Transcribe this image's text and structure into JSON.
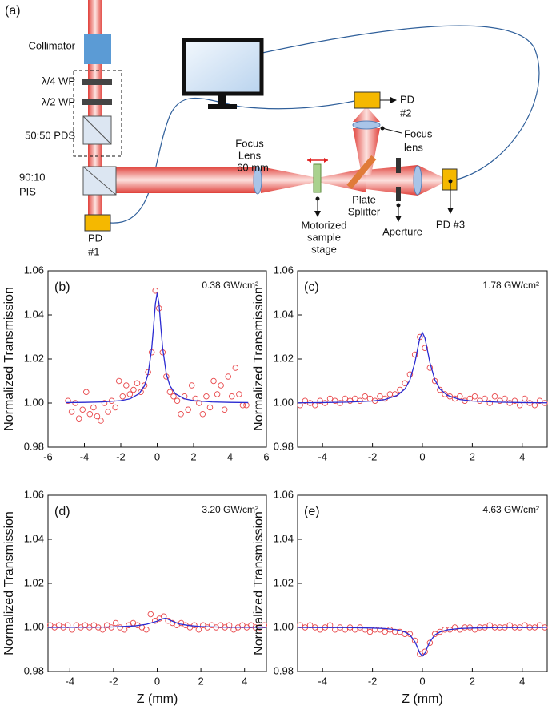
{
  "diagram": {
    "panel_label": "(a)",
    "collimator": "Collimator",
    "quarter_wp": "λ/4 WP",
    "half_wp": "λ/2 WP",
    "pds": "50:50 PDS",
    "pis": [
      "90:10",
      "PIS"
    ],
    "pd1": [
      "PD",
      "#1"
    ],
    "focus_lens": [
      "Focus",
      "Lens",
      "60 mm"
    ],
    "stage": [
      "Motorized",
      "sample",
      "stage"
    ],
    "splitter": [
      "Plate",
      "Splitter"
    ],
    "aperture": "Aperture",
    "pd3": "PD #3",
    "pd2": [
      "PD",
      "#2"
    ],
    "focus_lens2": [
      "Focus",
      "lens"
    ]
  },
  "chart_data": [
    {
      "type": "scatter",
      "panel_label": "(b)",
      "annotation": "0.38 GW/cm²",
      "ylabel": "Normalized Transmission",
      "xlim": [
        -6,
        6
      ],
      "xticks": [
        -6,
        -4,
        -2,
        0,
        2,
        4,
        6
      ],
      "ylim": [
        0.98,
        1.06
      ],
      "yticks": [
        0.98,
        {
          "value": 1,
          "label": "1.00"
        },
        1.02,
        1.04,
        1.06
      ],
      "series": [
        {
          "kind": "marker",
          "color": "#e8474a",
          "x": [
            -4.9,
            -4.7,
            -4.5,
            -4.3,
            -4.1,
            -3.9,
            -3.7,
            -3.5,
            -3.3,
            -3.1,
            -2.9,
            -2.7,
            -2.5,
            -2.3,
            -2.1,
            -1.9,
            -1.7,
            -1.5,
            -1.3,
            -1.1,
            -0.9,
            -0.7,
            -0.5,
            -0.3,
            -0.1,
            0.1,
            0.3,
            0.5,
            0.7,
            0.9,
            1.1,
            1.3,
            1.5,
            1.7,
            1.9,
            2.1,
            2.3,
            2.5,
            2.7,
            2.9,
            3.1,
            3.3,
            3.5,
            3.7,
            3.9,
            4.1,
            4.3,
            4.5,
            4.7,
            4.9
          ],
          "values": [
            1.001,
            0.996,
            1.0,
            0.993,
            0.997,
            1.005,
            0.995,
            0.998,
            0.994,
            0.992,
            1.0,
            0.996,
            1.001,
            0.998,
            1.01,
            1.003,
            1.008,
            1.004,
            1.006,
            1.009,
            1.005,
            1.008,
            1.014,
            1.023,
            1.051,
            1.043,
            1.023,
            1.012,
            1.005,
            1.003,
            1.001,
            0.995,
            1.003,
            0.997,
            1.008,
            1.002,
            1.0,
            0.995,
            1.003,
            0.998,
            1.01,
            1.004,
            1.008,
            0.997,
            1.012,
            1.003,
            1.016,
            1.004,
            0.999,
            0.999
          ]
        },
        {
          "kind": "line",
          "color": "#2b2bd1",
          "x": [
            -5,
            -4,
            -3,
            -2,
            -1.5,
            -1,
            -0.7,
            -0.5,
            -0.3,
            -0.2,
            -0.1,
            0,
            0.1,
            0.2,
            0.3,
            0.5,
            0.7,
            1,
            1.5,
            2,
            3,
            4,
            5
          ],
          "values": [
            1.0002,
            1.0003,
            1.0005,
            1.0011,
            1.0019,
            1.0042,
            1.0078,
            1.0132,
            1.025,
            1.0346,
            1.045,
            1.05,
            1.045,
            1.0346,
            1.025,
            1.0132,
            1.0078,
            1.0042,
            1.0019,
            1.0011,
            1.0005,
            1.0003,
            1.0002
          ]
        }
      ]
    },
    {
      "type": "scatter",
      "panel_label": "(c)",
      "annotation": "1.78 GW/cm²",
      "ylabel": "Normalized Transmission",
      "xlim": [
        -5,
        5
      ],
      "xticks": [
        -4,
        -2,
        0,
        2,
        4
      ],
      "ylim": [
        0.98,
        1.06
      ],
      "yticks": [
        0.98,
        {
          "value": 1,
          "label": "1.00"
        },
        1.02,
        1.04,
        1.06
      ],
      "series": [
        {
          "kind": "marker",
          "color": "#e8474a",
          "x": [
            -4.9,
            -4.7,
            -4.5,
            -4.3,
            -4.1,
            -3.9,
            -3.7,
            -3.5,
            -3.3,
            -3.1,
            -2.9,
            -2.7,
            -2.5,
            -2.3,
            -2.1,
            -1.9,
            -1.7,
            -1.5,
            -1.3,
            -1.1,
            -0.9,
            -0.7,
            -0.5,
            -0.3,
            -0.1,
            0.1,
            0.3,
            0.5,
            0.7,
            0.9,
            1.1,
            1.3,
            1.5,
            1.7,
            1.9,
            2.1,
            2.3,
            2.5,
            2.7,
            2.9,
            3.1,
            3.3,
            3.5,
            3.7,
            3.9,
            4.1,
            4.3,
            4.5,
            4.7,
            4.9
          ],
          "values": [
            0.999,
            1.001,
            1.0,
            0.999,
            1.001,
            1.0,
            1.002,
            1.001,
            1.0,
            1.002,
            1.001,
            1.002,
            1.001,
            1.003,
            1.002,
            1.001,
            1.003,
            1.002,
            1.004,
            1.004,
            1.006,
            1.009,
            1.013,
            1.022,
            1.03,
            1.025,
            1.016,
            1.01,
            1.006,
            1.004,
            1.003,
            1.002,
            1.003,
            1.001,
            1.002,
            1.003,
            1.001,
            1.002,
            1.0,
            1.003,
            1.001,
            1.002,
            1.0,
            1.001,
            0.999,
            1.002,
            1.0,
            0.999,
            1.001,
            1.0
          ]
        },
        {
          "kind": "line",
          "color": "#2b2bd1",
          "x": [
            -5,
            -4,
            -3,
            -2,
            -1.5,
            -1,
            -0.7,
            -0.5,
            -0.3,
            -0.2,
            -0.1,
            0,
            0.1,
            0.2,
            0.3,
            0.5,
            0.7,
            1,
            1.5,
            2,
            3,
            4,
            5
          ],
          "values": [
            1.0001,
            1.0002,
            1.0004,
            1.0009,
            1.0016,
            1.0035,
            1.0064,
            1.0105,
            1.0184,
            1.0241,
            1.0296,
            1.032,
            1.0296,
            1.0241,
            1.0184,
            1.0105,
            1.0064,
            1.0035,
            1.0016,
            1.0009,
            1.0004,
            1.0002,
            1.0001
          ]
        }
      ]
    },
    {
      "type": "scatter",
      "panel_label": "(d)",
      "annotation": "3.20 GW/cm²",
      "ylabel": "Normalized Transmission",
      "xlabel": "Z (mm)",
      "xlim": [
        -5,
        5
      ],
      "xticks": [
        -4,
        -2,
        0,
        2,
        4
      ],
      "ylim": [
        0.98,
        1.06
      ],
      "yticks": [
        0.98,
        {
          "value": 1,
          "label": "1.00"
        },
        1.02,
        1.04,
        1.06
      ],
      "series": [
        {
          "kind": "marker",
          "color": "#e8474a",
          "x": [
            -4.9,
            -4.7,
            -4.5,
            -4.3,
            -4.1,
            -3.9,
            -3.7,
            -3.5,
            -3.3,
            -3.1,
            -2.9,
            -2.7,
            -2.5,
            -2.3,
            -2.1,
            -1.9,
            -1.7,
            -1.5,
            -1.3,
            -1.1,
            -0.9,
            -0.7,
            -0.5,
            -0.3,
            -0.1,
            0.1,
            0.3,
            0.5,
            0.7,
            0.9,
            1.1,
            1.3,
            1.5,
            1.7,
            1.9,
            2.1,
            2.3,
            2.5,
            2.7,
            2.9,
            3.1,
            3.3,
            3.5,
            3.7,
            3.9,
            4.1,
            4.3,
            4.5,
            4.7,
            4.9
          ],
          "values": [
            1.001,
            1.0,
            1.001,
            1.0,
            1.001,
            0.999,
            1.001,
            1.0,
            1.001,
            1.0,
            1.001,
            1.0,
            0.999,
            1.001,
            1.0,
            1.002,
            1.0,
            0.999,
            1.001,
            1.002,
            1.001,
            1.0,
            0.999,
            1.006,
            1.003,
            1.004,
            1.005,
            1.003,
            1.002,
            1.001,
            1.002,
            1.001,
            1.0,
            1.001,
            0.999,
            1.001,
            1.0,
            1.001,
            1.0,
            1.001,
            1.0,
            1.001,
            0.999,
            1.0,
            1.001,
            1.0,
            1.001,
            1.0,
            1.0,
            1.001
          ]
        },
        {
          "kind": "line",
          "color": "#2b2bd1",
          "x": [
            -5,
            -3,
            -2,
            -1,
            -0.5,
            0,
            0.2,
            0.4,
            0.6,
            1,
            1.5,
            2,
            3,
            5
          ],
          "values": [
            1,
            1.0001,
            1.0002,
            1.0007,
            1.0014,
            1.0028,
            1.0038,
            1.0042,
            1.0032,
            1.0016,
            1.0008,
            1.0004,
            1.0001,
            1
          ]
        }
      ]
    },
    {
      "type": "scatter",
      "panel_label": "(e)",
      "annotation": "4.63 GW/cm²",
      "ylabel": "Normalized Transmission",
      "xlabel": "Z (mm)",
      "xlim": [
        -5,
        5
      ],
      "xticks": [
        -4,
        -2,
        0,
        2,
        4
      ],
      "ylim": [
        0.98,
        1.06
      ],
      "yticks": [
        0.98,
        {
          "value": 1,
          "label": "1.00"
        },
        1.02,
        1.04,
        1.06
      ],
      "series": [
        {
          "kind": "marker",
          "color": "#e8474a",
          "x": [
            -4.9,
            -4.7,
            -4.5,
            -4.3,
            -4.1,
            -3.9,
            -3.7,
            -3.5,
            -3.3,
            -3.1,
            -2.9,
            -2.7,
            -2.5,
            -2.3,
            -2.1,
            -1.9,
            -1.7,
            -1.5,
            -1.3,
            -1.1,
            -0.9,
            -0.7,
            -0.5,
            -0.3,
            -0.1,
            0.1,
            0.3,
            0.5,
            0.7,
            0.9,
            1.1,
            1.3,
            1.5,
            1.7,
            1.9,
            2.1,
            2.3,
            2.5,
            2.7,
            2.9,
            3.1,
            3.3,
            3.5,
            3.7,
            3.9,
            4.1,
            4.3,
            4.5,
            4.7,
            4.9
          ],
          "values": [
            1.001,
            1.0,
            1.001,
            1.0,
            0.999,
            1.0,
            1.001,
            0.999,
            1.0,
            0.999,
            1.0,
            0.999,
            1.0,
            0.999,
            0.998,
            0.999,
            0.999,
            0.998,
            0.999,
            0.998,
            0.998,
            0.997,
            0.997,
            0.994,
            0.988,
            0.989,
            0.993,
            0.997,
            0.998,
            0.999,
            0.999,
            1.0,
            0.999,
            1.0,
            1.0,
            0.999,
            1.0,
            1.0,
            1.001,
            1.0,
            1.0,
            1.0,
            1.001,
            1.0,
            1.0,
            1.001,
            1.0,
            1.0,
            1.001,
            1.0
          ]
        },
        {
          "kind": "line",
          "color": "#2b2bd1",
          "x": [
            -5,
            -4,
            -3,
            -2,
            -1.5,
            -1,
            -0.7,
            -0.5,
            -0.3,
            -0.2,
            -0.1,
            0,
            0.1,
            0.2,
            0.3,
            0.5,
            0.7,
            1,
            1.5,
            2,
            3,
            4,
            5
          ],
          "values": [
            1,
            0.9999,
            0.9999,
            0.9997,
            0.9995,
            0.9989,
            0.9979,
            0.9966,
            0.9935,
            0.991,
            0.9883,
            0.987,
            0.9883,
            0.991,
            0.9935,
            0.9966,
            0.9979,
            0.9989,
            0.9995,
            0.9997,
            0.9999,
            0.9999,
            1
          ]
        }
      ]
    }
  ]
}
